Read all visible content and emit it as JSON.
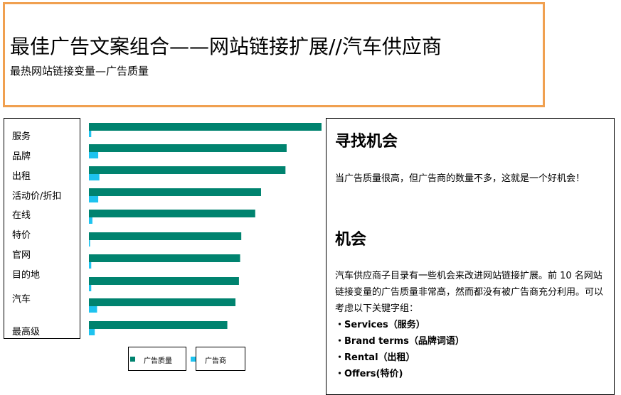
{
  "header": {
    "title": "最佳广告文案组合——网站链接扩展//汽车供应商",
    "subtitle": "最热网站链接变量—广告质量"
  },
  "colors": {
    "ad_quality": "#00836f",
    "advertisers": "#1ec3ef",
    "header_border": "#f0a050"
  },
  "chart_data": {
    "type": "bar",
    "orientation": "horizontal",
    "categories": [
      "服务",
      "品牌",
      "出租",
      "活动价/折扣",
      "在线",
      "特价",
      "官网",
      "目的地",
      "汽车",
      "最高级"
    ],
    "series": [
      {
        "name": "广告质量",
        "values": [
          100,
          85,
          84.5,
          74,
          71.5,
          65.5,
          65,
          64.5,
          63,
          59.5
        ]
      },
      {
        "name": "广告商",
        "values": [
          1,
          4,
          4.5,
          4,
          1.5,
          0.5,
          1,
          1,
          3.5,
          2.5
        ]
      }
    ],
    "xlim": [
      0,
      100
    ],
    "grid": false,
    "legend": "bottom"
  },
  "right_panel": {
    "heading1": "寻找机会",
    "para1": "当广告质量很高，但广告商的数量不多，这就是一个好机会！",
    "heading2": "机会",
    "para2": "汽车供应商子目录有一些机会来改进网站链接扩展。前 10 名网站链接变量的广告质量非常高，然而都没有被广告商充分利用。可以考虑以下关键字组：",
    "bullets": [
      "・Services（服务）",
      "・Brand terms（品牌词语）",
      "・Rental（出租）",
      "・Offers(特价)"
    ]
  }
}
